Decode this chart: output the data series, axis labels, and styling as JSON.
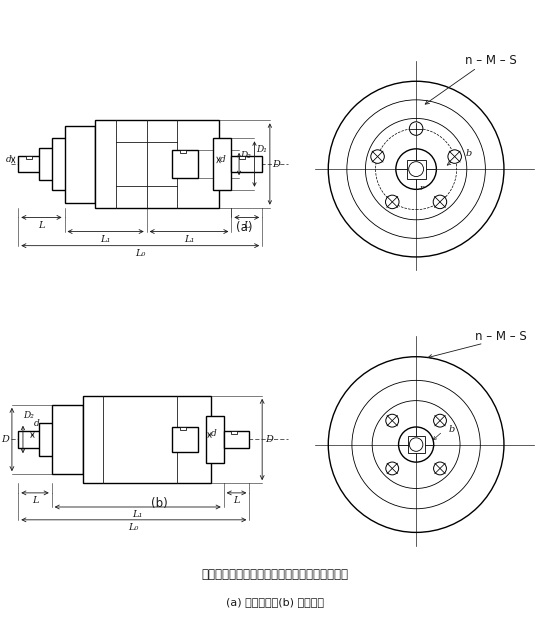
{
  "bg_color": "#ffffff",
  "line_color": "#1a1a1a",
  "fig_width": 5.5,
  "fig_height": 6.19,
  "label_nms": "n – M – S",
  "caption_line1": "轴输入，轴输出，单侧或双侧止口支摔式离合器",
  "caption_line2": "(a) 双侧止口；(b) 单侧止口"
}
